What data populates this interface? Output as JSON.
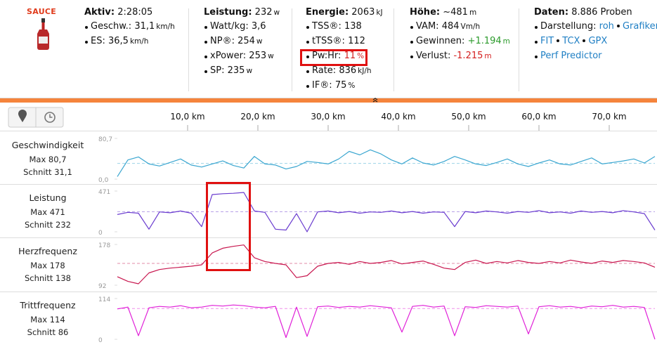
{
  "logo": "SAUCE",
  "stats": [
    {
      "title": "Aktiv:",
      "value": "2:28:05",
      "items": [
        {
          "label": "Geschw.:",
          "value": "31,1",
          "unit": "km/h"
        },
        {
          "label": "ES:",
          "value": "36,5",
          "unit": "km/h"
        }
      ]
    },
    {
      "title": "Leistung:",
      "value": "232",
      "unit": "w",
      "items": [
        {
          "label": "Watt/kg:",
          "value": "3,6"
        },
        {
          "label": "NP®:",
          "value": "254",
          "unit": "w"
        },
        {
          "label": "xPower:",
          "value": "253",
          "unit": "w"
        },
        {
          "label": "SP:",
          "value": "235",
          "unit": "w"
        }
      ]
    },
    {
      "title": "Energie:",
      "value": "2063",
      "unit": "kJ",
      "items": [
        {
          "label": "TSS®:",
          "value": "138"
        },
        {
          "label": "tTSS®:",
          "value": "112"
        },
        {
          "label": "Pw:Hr:",
          "value": "11",
          "unit": "%",
          "color": "#d42020"
        },
        {
          "label": "Rate:",
          "value": "836",
          "unit": "kJ/h"
        },
        {
          "label": "IF®:",
          "value": "75",
          "unit": "%"
        }
      ]
    },
    {
      "title": "Höhe:",
      "value": "~481",
      "unit": "m",
      "items": [
        {
          "label": "VAM:",
          "value": "484",
          "unit": "Vm/h"
        },
        {
          "label": "Gewinnen:",
          "value": "+1.194",
          "unit": "m",
          "color": "#2a9a2a"
        },
        {
          "label": "Verlust:",
          "value": "-1.215",
          "unit": "m",
          "color": "#d42020"
        }
      ]
    },
    {
      "title": "Daten:",
      "value": "8.886 Proben",
      "items": [
        {
          "label": "Darstellung:",
          "links": [
            "roh",
            "Grafiken"
          ]
        },
        {
          "links": [
            "FIT",
            "TCX",
            "GPX"
          ]
        },
        {
          "links": [
            "Perf Predictor"
          ]
        }
      ]
    }
  ],
  "distance_axis": {
    "xlim": [
      0,
      76.5
    ],
    "xticks": [
      {
        "value": 10,
        "label": "10,0 km"
      },
      {
        "value": 20,
        "label": "20,0 km"
      },
      {
        "value": 30,
        "label": "30,0 km"
      },
      {
        "value": 40,
        "label": "40,0 km"
      },
      {
        "value": 50,
        "label": "50,0 km"
      },
      {
        "value": 60,
        "label": "60,0 km"
      },
      {
        "value": 70,
        "label": "70,0 km"
      }
    ],
    "x": [
      0,
      1.5,
      3,
      4.5,
      6,
      7.5,
      9,
      10.5,
      12,
      13.5,
      15,
      16.5,
      18,
      19.5,
      21,
      22.5,
      24,
      25.5,
      27,
      28.5,
      30,
      31.5,
      33,
      34.5,
      36,
      37.5,
      39,
      40.5,
      42,
      43.5,
      45,
      46.5,
      48,
      49.5,
      51,
      52.5,
      54,
      55.5,
      57,
      58.5,
      60,
      61.5,
      63,
      64.5,
      66,
      67.5,
      69,
      70.5,
      72,
      73.5,
      75,
      76.5
    ]
  },
  "streams": [
    {
      "name": "Geschwindigkeit",
      "max": "Max 80,7",
      "avg_label": "Schnitt 31,1",
      "avg": 31.1,
      "color": "#3aa6d0",
      "ylim": [
        0,
        80.7
      ],
      "yticks": [
        {
          "value": 80.7,
          "label": "80,7"
        },
        {
          "value": 0,
          "label": "0,0"
        }
      ],
      "values": [
        5,
        38,
        44,
        30,
        26,
        33,
        40,
        28,
        24,
        30,
        36,
        27,
        22,
        45,
        30,
        28,
        20,
        25,
        35,
        33,
        30,
        40,
        55,
        48,
        58,
        50,
        38,
        30,
        42,
        32,
        28,
        35,
        45,
        38,
        30,
        27,
        33,
        40,
        30,
        25,
        32,
        38,
        30,
        28,
        35,
        42,
        30,
        33,
        36,
        40,
        32,
        45
      ]
    },
    {
      "name": "Leistung",
      "max": "Max 471",
      "avg_label": "Schnitt 232",
      "avg": 232,
      "color": "#6a3ccf",
      "ylim": [
        0,
        471
      ],
      "yticks": [
        471,
        0
      ],
      "values": [
        200,
        225,
        215,
        30,
        230,
        220,
        240,
        215,
        60,
        430,
        440,
        445,
        455,
        240,
        225,
        30,
        20,
        210,
        0,
        230,
        240,
        220,
        235,
        215,
        230,
        225,
        240,
        220,
        235,
        215,
        230,
        225,
        60,
        235,
        220,
        240,
        230,
        215,
        235,
        225,
        245,
        220,
        230,
        215,
        240,
        225,
        235,
        220,
        245,
        230,
        210,
        20
      ]
    },
    {
      "name": "Herzfrequenz",
      "max": "Max 178",
      "avg_label": "Schnitt 138",
      "avg": 138,
      "color": "#c8174f",
      "ylim": [
        92,
        178
      ],
      "yticks": [
        178,
        92
      ],
      "values": [
        110,
        100,
        95,
        118,
        125,
        128,
        130,
        132,
        135,
        160,
        170,
        174,
        177,
        150,
        142,
        138,
        135,
        108,
        112,
        132,
        138,
        140,
        136,
        142,
        138,
        140,
        144,
        137,
        140,
        143,
        136,
        128,
        125,
        140,
        145,
        138,
        142,
        139,
        144,
        140,
        138,
        142,
        139,
        145,
        141,
        138,
        143,
        140,
        144,
        142,
        139,
        130
      ]
    },
    {
      "name": "Trittfrequenz",
      "max": "Max 114",
      "avg_label": "Schnitt 86",
      "avg": 86,
      "color": "#e020d8",
      "ylim": [
        0,
        114
      ],
      "yticks": [
        114,
        0
      ],
      "values": [
        85,
        90,
        10,
        88,
        92,
        90,
        94,
        88,
        90,
        95,
        93,
        96,
        94,
        90,
        88,
        92,
        5,
        90,
        8,
        91,
        93,
        89,
        92,
        90,
        94,
        91,
        88,
        20,
        92,
        95,
        90,
        93,
        10,
        91,
        89,
        94,
        92,
        90,
        93,
        15,
        91,
        94,
        90,
        92,
        88,
        93,
        91,
        95,
        90,
        92,
        89,
        0
      ]
    }
  ]
}
